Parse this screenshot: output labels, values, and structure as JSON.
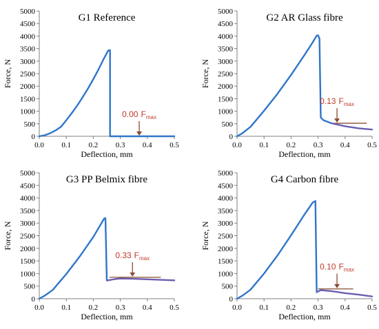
{
  "colors": {
    "curve": "#2E75C9",
    "post_peak": "#7E57A8",
    "reference_line": "#8A4A2F",
    "annotation": "#C0392B",
    "axis": "#7F7F7F"
  },
  "chart_data": [
    {
      "type": "line",
      "title": "G1 Reference",
      "xlabel": "Deflection, mm",
      "ylabel": "Force, N",
      "xlim": [
        0,
        0.5
      ],
      "ylim": [
        0,
        5000
      ],
      "x_ticks": [
        "0.0",
        "0.1",
        "0.2",
        "0.3",
        "0.4",
        "0.5"
      ],
      "y_ticks": [
        "0",
        "500",
        "1000",
        "1500",
        "2000",
        "2500",
        "3000",
        "3500",
        "4000",
        "4500",
        "5000"
      ],
      "grid": false,
      "series": [
        {
          "x": [
            0,
            0.02,
            0.04,
            0.06,
            0.08,
            0.1,
            0.12,
            0.14,
            0.16,
            0.18,
            0.2,
            0.22,
            0.24,
            0.255,
            0.262,
            0.262,
            0.3,
            0.35,
            0.4,
            0.45,
            0.5
          ],
          "y": [
            0,
            40,
            120,
            230,
            380,
            640,
            920,
            1220,
            1550,
            1900,
            2280,
            2680,
            3120,
            3420,
            3440,
            0,
            0,
            0,
            0,
            0,
            0
          ]
        }
      ],
      "annotation": {
        "value": "0.00",
        "label": "F",
        "subscript": "max",
        "x": 0.37,
        "y": 0
      },
      "residual_line": null
    },
    {
      "type": "line",
      "title": "G2 AR Glass fibre",
      "xlabel": "Deflection, mm",
      "ylabel": "Force, N",
      "xlim": [
        0,
        0.5
      ],
      "ylim": [
        0,
        5000
      ],
      "x_ticks": [
        "0.0",
        "0.1",
        "0.2",
        "0.3",
        "0.4",
        "0.5"
      ],
      "y_ticks": [
        "0",
        "500",
        "1000",
        "1500",
        "2000",
        "2500",
        "3000",
        "3500",
        "4000",
        "4500",
        "5000"
      ],
      "grid": false,
      "series": [
        {
          "x": [
            0,
            0.02,
            0.05,
            0.1,
            0.15,
            0.2,
            0.25,
            0.28,
            0.295,
            0.3,
            0.305,
            0.31,
            0.32,
            0.35,
            0.4,
            0.45,
            0.5
          ],
          "y": [
            0,
            120,
            380,
            1020,
            1700,
            2450,
            3250,
            3750,
            4020,
            4030,
            3900,
            750,
            640,
            520,
            400,
            320,
            270
          ]
        }
      ],
      "annotation": {
        "value": "0.13",
        "label": "F",
        "subscript": "max",
        "x": 0.37,
        "y": 520
      },
      "residual_line": {
        "y": 520,
        "x_start": 0.36,
        "x_end": 0.48
      }
    },
    {
      "type": "line",
      "title": "G3 PP Belmix fibre",
      "xlabel": "Deflection, mm",
      "ylabel": "Force, N",
      "xlim": [
        0,
        0.5
      ],
      "ylim": [
        0,
        5000
      ],
      "x_ticks": [
        "0.0",
        "0.1",
        "0.2",
        "0.3",
        "0.4",
        "0.5"
      ],
      "y_ticks": [
        "0",
        "500",
        "1000",
        "1500",
        "2000",
        "2500",
        "3000",
        "3500",
        "4000",
        "4500",
        "5000"
      ],
      "grid": false,
      "series": [
        {
          "x": [
            0,
            0.02,
            0.05,
            0.1,
            0.15,
            0.2,
            0.24,
            0.245,
            0.25,
            0.28,
            0.3,
            0.35,
            0.4,
            0.45,
            0.5
          ],
          "y": [
            0,
            120,
            350,
            980,
            1680,
            2450,
            3180,
            3200,
            720,
            780,
            800,
            790,
            770,
            750,
            730
          ]
        }
      ],
      "annotation": {
        "value": "0.33",
        "label": "F",
        "subscript": "max",
        "x": 0.345,
        "y": 850
      },
      "residual_line": {
        "y": 850,
        "x_start": 0.26,
        "x_end": 0.45
      }
    },
    {
      "type": "line",
      "title": "G4 Carbon fibre",
      "xlabel": "Deflection, mm",
      "ylabel": "Force, N",
      "xlim": [
        0,
        0.5
      ],
      "ylim": [
        0,
        5000
      ],
      "x_ticks": [
        "0.0",
        "0.1",
        "0.2",
        "0.3",
        "0.4",
        "0.5"
      ],
      "y_ticks": [
        "0",
        "500",
        "1000",
        "1500",
        "2000",
        "2500",
        "3000",
        "3500",
        "4000",
        "4500",
        "5000"
      ],
      "grid": false,
      "series": [
        {
          "x": [
            0,
            0.02,
            0.05,
            0.1,
            0.15,
            0.2,
            0.25,
            0.28,
            0.29,
            0.295,
            0.31,
            0.35,
            0.4,
            0.45,
            0.5
          ],
          "y": [
            0,
            120,
            360,
            1000,
            1720,
            2520,
            3350,
            3820,
            3880,
            260,
            340,
            300,
            220,
            160,
            90
          ]
        }
      ],
      "annotation": {
        "value": "0.10",
        "label": "F",
        "subscript": "max",
        "x": 0.37,
        "y": 390
      },
      "residual_line": {
        "y": 390,
        "x_start": 0.3,
        "x_end": 0.43
      }
    }
  ]
}
